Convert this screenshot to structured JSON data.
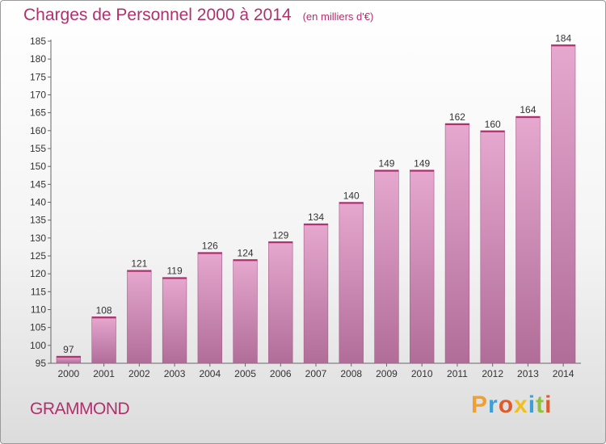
{
  "title": "Charges de Personnel 2000 à 2014",
  "subtitle": "(en milliers d'€)",
  "commune": "GRAMMOND",
  "brand": "Proxiti",
  "colors": {
    "title": "#b0306e",
    "bar_top": "#e6a8cf",
    "bar_bottom": "#b06d98",
    "brand_letters": [
      "#f0a030",
      "#3ca0d8",
      "#e05a2a",
      "#f0c020",
      "#3ca0d8",
      "#8fc23a",
      "#e05a2a"
    ]
  },
  "chart_data": {
    "type": "bar",
    "title": "Charges de Personnel 2000 à 2014",
    "subtitle": "(en milliers d'€)",
    "xlabel": "",
    "ylabel": "",
    "categories": [
      "2000",
      "2001",
      "2002",
      "2003",
      "2004",
      "2005",
      "2006",
      "2007",
      "2008",
      "2009",
      "2010",
      "2011",
      "2012",
      "2013",
      "2014"
    ],
    "values": [
      97,
      108,
      121,
      119,
      126,
      124,
      129,
      134,
      140,
      149,
      149,
      162,
      160,
      164,
      184
    ],
    "ylim": [
      95,
      185
    ],
    "yticks": [
      95,
      100,
      105,
      110,
      115,
      120,
      125,
      130,
      135,
      140,
      145,
      150,
      155,
      160,
      165,
      170,
      175,
      180,
      185
    ],
    "grid": false,
    "legend": "none"
  }
}
